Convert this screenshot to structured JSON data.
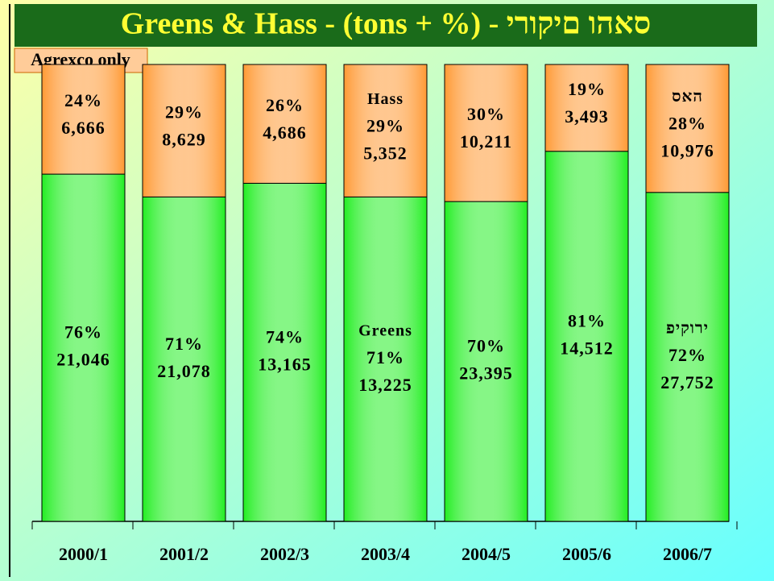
{
  "chart_data": {
    "type": "stacked_bar_100",
    "title": "Greens & Hass - (tons + %) - ירוקים והאס",
    "subtitle": "Agrexco only",
    "categories": [
      "2000/1",
      "2001/2",
      "2002/3",
      "2003/4",
      "2004/5",
      "2005/6",
      "2006/7"
    ],
    "ylim": [
      0,
      100
    ],
    "series": [
      {
        "name": "Greens",
        "color": "#22ee22",
        "values": [
          76,
          71,
          74,
          71,
          70,
          81,
          72
        ],
        "value_labels": [
          "76%",
          "71%",
          "74%",
          "71%",
          "70%",
          "81%",
          "72%"
        ],
        "tons": [
          21046,
          21078,
          13165,
          13225,
          23395,
          14512,
          27752
        ],
        "tons_labels": [
          "21,046",
          "21,078",
          "13,165",
          "13,225",
          "23,395",
          "14,512",
          "27,752"
        ]
      },
      {
        "name": "Hass",
        "color": "#ff9933",
        "values": [
          24,
          29,
          26,
          29,
          30,
          19,
          28
        ],
        "value_labels": [
          "24%",
          "29%",
          "26%",
          "29%",
          "30%",
          "19%",
          "28%"
        ],
        "tons": [
          6666,
          8629,
          4686,
          5352,
          10211,
          3493,
          10976
        ],
        "tons_labels": [
          "6,666",
          "8,629",
          "4,686",
          "5,352",
          "10,211",
          "3,493",
          "10,976"
        ]
      }
    ],
    "annotations": [
      {
        "text": "Greens",
        "series": "Greens",
        "category": "2003/4"
      },
      {
        "text": "Hass",
        "series": "Hass",
        "category": "2003/4"
      },
      {
        "text": "פיקורי",
        "series": "Greens",
        "category": "2006/7"
      },
      {
        "text": "סאה",
        "series": "Hass",
        "category": "2006/7"
      }
    ]
  }
}
